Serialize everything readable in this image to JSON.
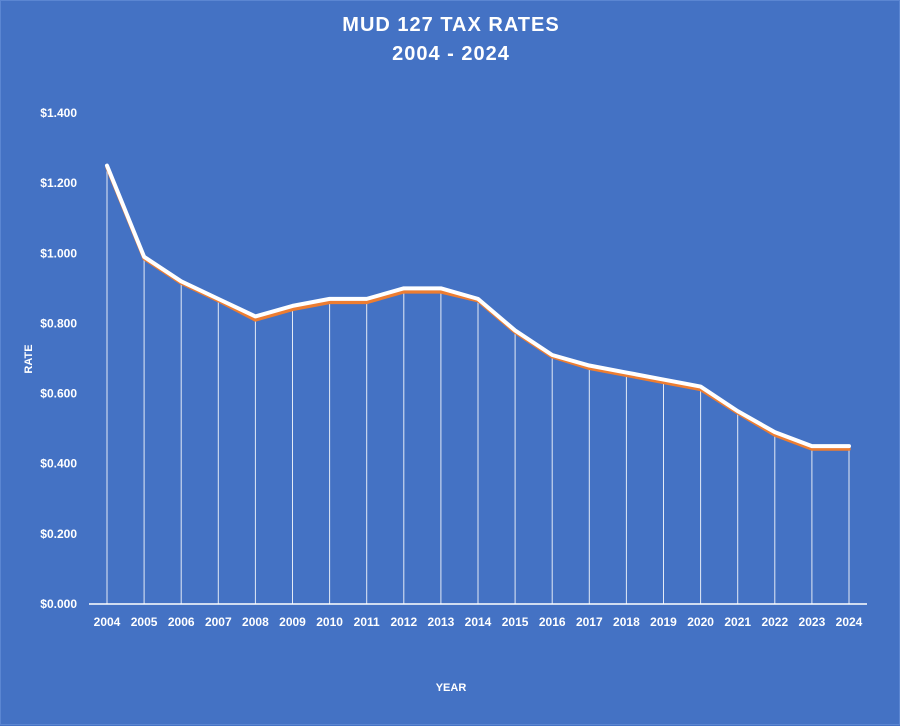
{
  "chart_data": {
    "type": "line",
    "title": "MUD 127 TAX RATES",
    "subtitle": "2004 - 2024",
    "xlabel": "YEAR",
    "ylabel": "RATE",
    "ylim": [
      0,
      1.4
    ],
    "y_ticks": [
      "$0.000",
      "$0.200",
      "$0.400",
      "$0.600",
      "$0.800",
      "$1.000",
      "$1.200",
      "$1.400"
    ],
    "categories": [
      "2004",
      "2005",
      "2006",
      "2007",
      "2008",
      "2009",
      "2010",
      "2011",
      "2012",
      "2013",
      "2014",
      "2015",
      "2016",
      "2017",
      "2018",
      "2019",
      "2020",
      "2021",
      "2022",
      "2023",
      "2024"
    ],
    "series": [
      {
        "color": "#ffffff",
        "values": [
          1.25,
          0.99,
          0.92,
          0.87,
          0.82,
          0.85,
          0.87,
          0.87,
          0.9,
          0.9,
          0.87,
          0.78,
          0.71,
          0.68,
          0.66,
          0.64,
          0.62,
          0.55,
          0.49,
          0.45,
          0.45
        ]
      },
      {
        "color": "#ed7d31",
        "values": [
          1.245,
          0.985,
          0.915,
          0.865,
          0.81,
          0.84,
          0.86,
          0.86,
          0.89,
          0.89,
          0.865,
          0.775,
          0.705,
          0.672,
          0.652,
          0.632,
          0.612,
          0.545,
          0.482,
          0.442,
          0.442
        ]
      }
    ],
    "drop_lines": true,
    "grid": false,
    "legend": "none"
  }
}
